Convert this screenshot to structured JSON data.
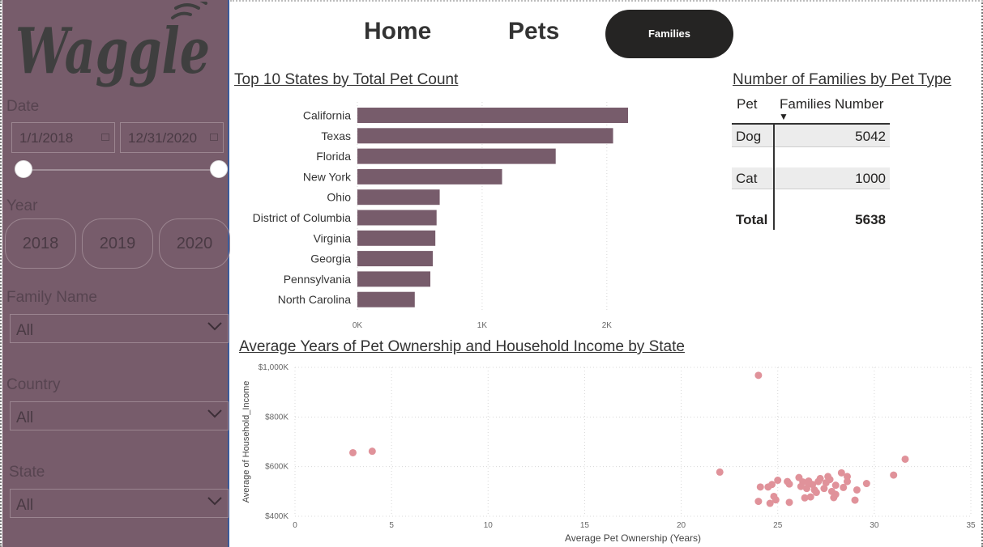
{
  "sidebar": {
    "logo_text": "Waggle",
    "date": {
      "label": "Date",
      "start": "1/1/2018",
      "end": "12/31/2020"
    },
    "date_range_selected": [
      0,
      1
    ],
    "year": {
      "label": "Year",
      "options": [
        "2018",
        "2019",
        "2020"
      ]
    },
    "family_name": {
      "label": "Family Name",
      "value": "All"
    },
    "country": {
      "label": "Country",
      "value": "All"
    },
    "state": {
      "label": "State",
      "value": "All"
    }
  },
  "nav": {
    "home": "Home",
    "pets": "Pets",
    "families": "Families",
    "active": "Families"
  },
  "colors": {
    "sidebar": "#775c6b",
    "bar": "#775c6b",
    "scatter_point": "#e0929a",
    "nav_active_bg": "#252423"
  },
  "bar_chart_title": "Top 10 States by Total Pet Count",
  "table": {
    "title": "Number of Families by Pet Type",
    "headers": [
      "Pet",
      "Families Number"
    ],
    "sort_indicator": "▼",
    "rows": [
      {
        "pet": "Dog",
        "value": "5042"
      },
      {
        "pet": "Cat",
        "value": "1000"
      }
    ],
    "total_label": "Total",
    "total_value": "5638"
  },
  "scatter_title": "Average Years of Pet Ownership and Household Income by State",
  "chart_data": [
    {
      "type": "bar",
      "orientation": "horizontal",
      "title": "Top 10 States by Total Pet Count",
      "categories": [
        "California",
        "Texas",
        "Florida",
        "New York",
        "Ohio",
        "District of Columbia",
        "Virginia",
        "Georgia",
        "Pennsylvania",
        "North Carolina"
      ],
      "values": [
        2170,
        2050,
        1590,
        1160,
        660,
        635,
        625,
        605,
        585,
        460
      ],
      "xlim": [
        0,
        2300
      ],
      "xticks": [
        0,
        1000,
        2000
      ],
      "xtick_labels": [
        "0K",
        "1K",
        "2K"
      ],
      "grid": "vertical dotted"
    },
    {
      "type": "scatter",
      "title": "Average Years of Pet Ownership and Household Income by State",
      "xlabel": "Average Pet Ownership (Years)",
      "ylabel": "Average of Household_Income",
      "xlim": [
        0,
        35
      ],
      "ylim": [
        400000,
        1000000
      ],
      "xticks": [
        0,
        5,
        10,
        15,
        20,
        25,
        30,
        35
      ],
      "xtick_labels": [
        "0",
        "5",
        "10",
        "15",
        "20",
        "25",
        "30",
        "35"
      ],
      "yticks": [
        400000,
        600000,
        800000,
        1000000
      ],
      "ytick_labels": [
        "$400K",
        "$600K",
        "$800K",
        "$1,000K"
      ],
      "grid": "dotted",
      "points": [
        [
          3.0,
          656000
        ],
        [
          4.0,
          662000
        ],
        [
          24.0,
          968000
        ],
        [
          22.0,
          578000
        ],
        [
          24.0,
          460000
        ],
        [
          24.1,
          518000
        ],
        [
          24.5,
          518000
        ],
        [
          24.6,
          452000
        ],
        [
          24.7,
          528000
        ],
        [
          24.8,
          480000
        ],
        [
          24.9,
          466000
        ],
        [
          25.0,
          545000
        ],
        [
          25.5,
          540000
        ],
        [
          25.6,
          456000
        ],
        [
          25.6,
          530000
        ],
        [
          26.1,
          556000
        ],
        [
          26.2,
          520000
        ],
        [
          26.3,
          538000
        ],
        [
          26.4,
          474000
        ],
        [
          26.5,
          512000
        ],
        [
          26.6,
          542000
        ],
        [
          26.6,
          530000
        ],
        [
          26.7,
          478000
        ],
        [
          26.8,
          528000
        ],
        [
          26.9,
          506000
        ],
        [
          27.0,
          496000
        ],
        [
          27.1,
          540000
        ],
        [
          27.2,
          552000
        ],
        [
          27.4,
          512000
        ],
        [
          27.5,
          535000
        ],
        [
          27.6,
          560000
        ],
        [
          27.7,
          548000
        ],
        [
          27.8,
          500000
        ],
        [
          27.9,
          475000
        ],
        [
          28.0,
          488000
        ],
        [
          28.0,
          525000
        ],
        [
          28.3,
          575000
        ],
        [
          28.4,
          516000
        ],
        [
          28.6,
          540000
        ],
        [
          28.6,
          560000
        ],
        [
          29.0,
          465000
        ],
        [
          29.1,
          506000
        ],
        [
          29.6,
          532000
        ],
        [
          31.0,
          566000
        ],
        [
          31.6,
          630000
        ]
      ]
    }
  ]
}
